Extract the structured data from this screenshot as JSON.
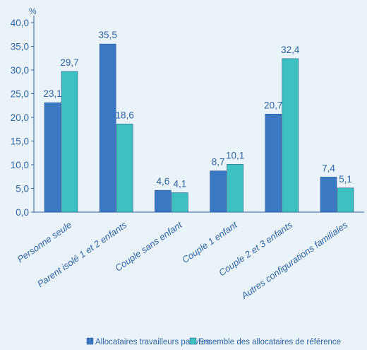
{
  "chart_data": {
    "type": "bar",
    "unit": "%",
    "ylim": [
      0,
      40
    ],
    "yticks": [
      "0,0",
      "5,0",
      "10,0",
      "15,0",
      "20,0",
      "25,0",
      "30,0",
      "35,0",
      "40,0"
    ],
    "categories": [
      "Personne seule",
      "Parent isolé 1 et 2 enfants",
      "Couple sans enfant",
      "Couple 1 enfant",
      "Couple 2 et 3 enfants",
      "Autres configurations familiales"
    ],
    "series": [
      {
        "name": "Allocataires travailleurs pauvres",
        "color": "#3a78c4",
        "values": [
          23.1,
          35.5,
          4.6,
          8.7,
          20.7,
          7.4
        ],
        "labels": [
          "23,1",
          "35,5",
          "4,6",
          "8,7",
          "20,7",
          "7,4"
        ]
      },
      {
        "name": "Ensemble des allocataires de référence",
        "color": "#3cc0c0",
        "values": [
          29.7,
          18.6,
          4.1,
          10.1,
          32.4,
          5.1
        ],
        "labels": [
          "29,7",
          "18,6",
          "4,1",
          "10,1",
          "32,4",
          "5,1"
        ]
      }
    ],
    "grid": false,
    "legend_position": "bottom"
  }
}
